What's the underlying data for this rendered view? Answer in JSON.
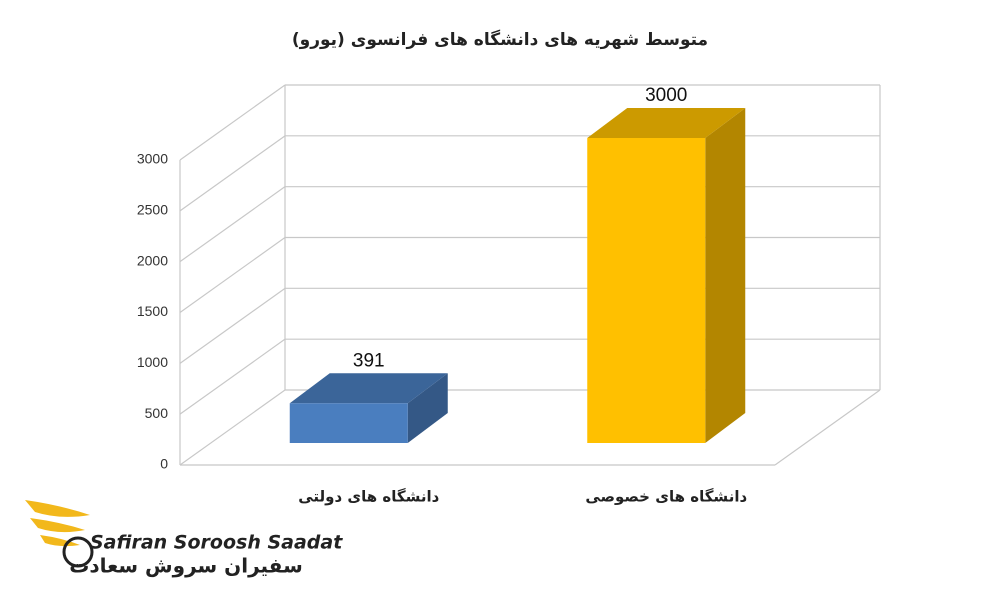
{
  "chart_data": {
    "type": "bar3d",
    "title": "متوسط شهریه های دانشگاه های فرانسوی (یورو)",
    "categories": [
      "دانشگاه های دولتی",
      "دانشگاه های خصوصی"
    ],
    "values": [
      391,
      3000
    ],
    "colors": [
      "#4a7ebf",
      "#ffc000"
    ],
    "ylim": [
      0,
      3000
    ],
    "yticks": [
      0,
      500,
      1000,
      1500,
      2000,
      2500,
      3000
    ],
    "grid": true
  },
  "logo": {
    "name_en": "Safiran Soroosh Saadat",
    "name_fa": "سفیران سروش سعادت"
  }
}
